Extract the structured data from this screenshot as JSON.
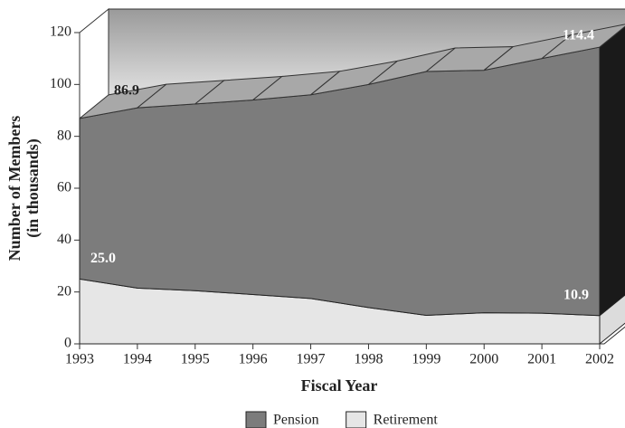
{
  "chart_data": {
    "type": "area3d",
    "x_label": "Fiscal Year",
    "y_label": [
      "Number of Members",
      "(in thousands)"
    ],
    "categories": [
      "1993",
      "1994",
      "1995",
      "1996",
      "1997",
      "1998",
      "1999",
      "2000",
      "2001",
      "2002"
    ],
    "series": [
      {
        "name": "Retirement",
        "color": "#e6e6e6",
        "values": [
          25.0,
          21.5,
          20.5,
          19,
          17.5,
          14,
          11,
          12,
          11.8,
          10.9
        ],
        "value_labels": [
          "25.0",
          null,
          null,
          null,
          null,
          null,
          null,
          null,
          null,
          "10.9"
        ]
      },
      {
        "name": "Pension",
        "color": "#7c7c7c",
        "values": [
          61.9,
          69.5,
          72,
          75,
          78.5,
          86,
          94,
          93.5,
          98.2,
          103.5
        ]
      }
    ],
    "annotations": [
      "86.9",
      "114.4"
    ],
    "ylim": [
      0,
      120
    ],
    "yticks": [
      0,
      20,
      40,
      60,
      80,
      100,
      120
    ],
    "stacked": true,
    "legend": "bottom"
  }
}
